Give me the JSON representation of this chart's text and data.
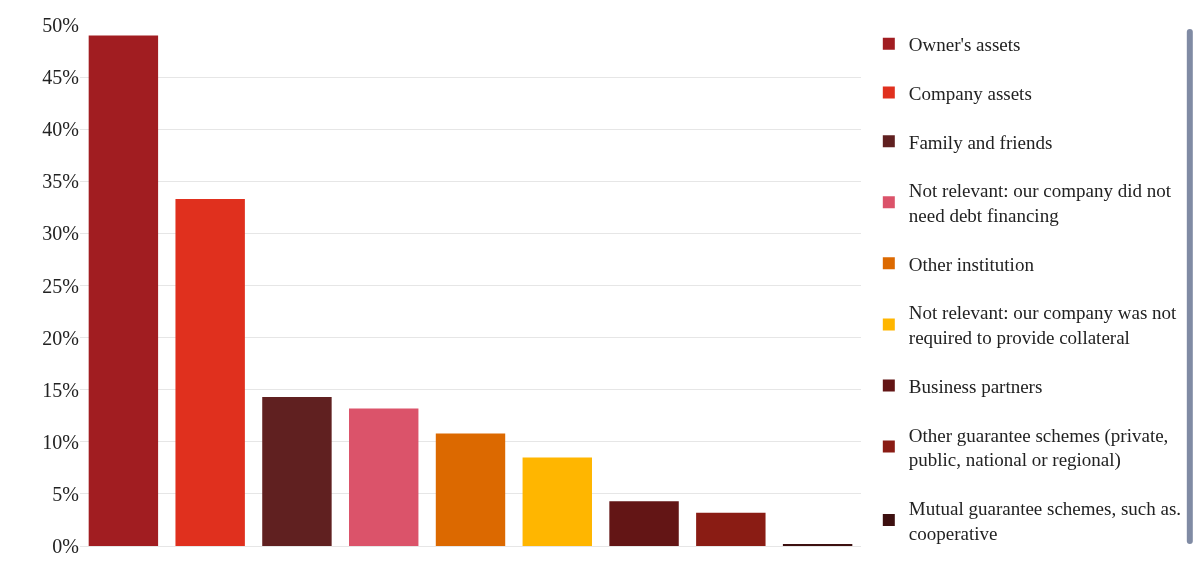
{
  "chart_data": {
    "type": "bar",
    "categories": [
      null,
      null,
      null,
      null,
      null,
      null,
      null,
      null,
      null
    ],
    "series": [
      {
        "name": "Owner's assets",
        "color": "#a11d21",
        "values": [
          49.0,
          null,
          null,
          null,
          null,
          null,
          null,
          null,
          null
        ]
      },
      {
        "name": "Company assets",
        "color": "#e0301e",
        "values": [
          null,
          33.3,
          null,
          null,
          null,
          null,
          null,
          null,
          null
        ]
      },
      {
        "name": "Family and friends",
        "color": "#602020",
        "values": [
          null,
          null,
          14.3,
          null,
          null,
          null,
          null,
          null,
          null
        ]
      },
      {
        "name": "Not relevant: our company did not need debt financing",
        "color": "#db536a",
        "values": [
          null,
          null,
          null,
          13.2,
          null,
          null,
          null,
          null,
          null
        ]
      },
      {
        "name": "Other institution",
        "color": "#dc6900",
        "values": [
          null,
          null,
          null,
          null,
          10.8,
          null,
          null,
          null,
          null
        ]
      },
      {
        "name": "Not relevant: our company was not required to provide collateral",
        "color": "#ffb600",
        "values": [
          null,
          null,
          null,
          null,
          null,
          8.5,
          null,
          null,
          null
        ]
      },
      {
        "name": "Business partners",
        "color": "#631515",
        "values": [
          null,
          null,
          null,
          null,
          null,
          null,
          4.3,
          null,
          null
        ]
      },
      {
        "name": "Other guarantee schemes (private, public, national or regional)",
        "color": "#8a1c14",
        "values": [
          null,
          null,
          null,
          null,
          null,
          null,
          null,
          3.2,
          null
        ]
      },
      {
        "name": "Mutual guarantee schemes, such as. cooperative",
        "color": "#3d1010",
        "values": [
          null,
          null,
          null,
          null,
          null,
          null,
          null,
          null,
          0.1
        ]
      }
    ],
    "ylim": [
      0,
      50
    ],
    "yticks": [
      {
        "value": 0,
        "label": "0%"
      },
      {
        "value": 5,
        "label": "5%"
      },
      {
        "value": 10,
        "label": "10%"
      },
      {
        "value": 15,
        "label": "15%"
      },
      {
        "value": 20,
        "label": "20%"
      },
      {
        "value": 25,
        "label": "25%"
      },
      {
        "value": 30,
        "label": "30%"
      },
      {
        "value": 35,
        "label": "35%"
      },
      {
        "value": 40,
        "label": "40%"
      },
      {
        "value": 45,
        "label": "45%"
      },
      {
        "value": 50,
        "label": "50%"
      }
    ],
    "grid": "y",
    "legend": "right"
  }
}
